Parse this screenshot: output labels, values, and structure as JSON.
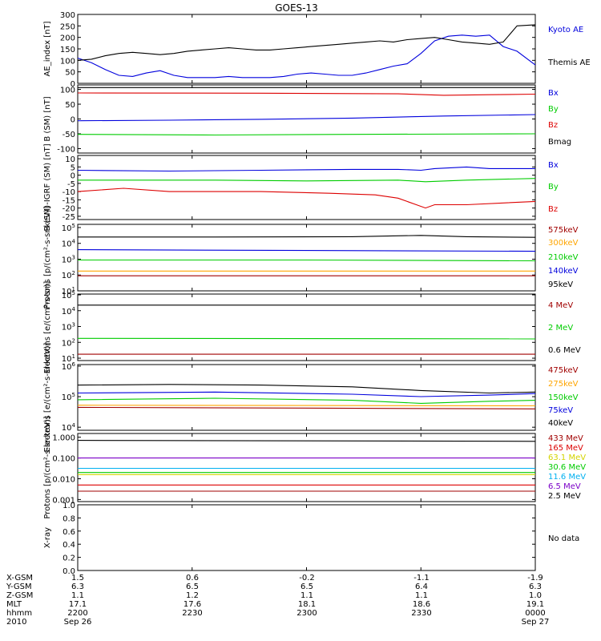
{
  "title": "GOES-13",
  "colors": {
    "black": "#000000",
    "blue": "#0000dd",
    "green": "#00cc00",
    "red": "#dd0000",
    "orange": "#ffa500",
    "darkred": "#a00000",
    "cyan": "#00b0f0",
    "purple": "#7b00c8",
    "yellow": "#d4d400"
  },
  "chart_data": [
    {
      "type": "line",
      "panel_id": "ae",
      "ylabel": "AE_index [nT]",
      "yticks": [
        "300",
        "250",
        "200",
        "150",
        "100",
        "50",
        "0"
      ],
      "ylim": [
        0,
        300
      ],
      "scale": "linear",
      "series": [
        {
          "name": "Kyoto AE",
          "color": "blue",
          "values": [
            [
              0,
              110
            ],
            [
              3,
              90
            ],
            [
              6,
              60
            ],
            [
              9,
              35
            ],
            [
              12,
              30
            ],
            [
              15,
              45
            ],
            [
              18,
              55
            ],
            [
              21,
              35
            ],
            [
              24,
              25
            ],
            [
              27,
              25
            ],
            [
              30,
              25
            ],
            [
              33,
              30
            ],
            [
              36,
              25
            ],
            [
              39,
              25
            ],
            [
              42,
              25
            ],
            [
              45,
              30
            ],
            [
              48,
              40
            ],
            [
              51,
              45
            ],
            [
              54,
              40
            ],
            [
              57,
              35
            ],
            [
              60,
              35
            ],
            [
              63,
              45
            ],
            [
              66,
              60
            ],
            [
              69,
              75
            ],
            [
              72,
              85
            ],
            [
              75,
              130
            ],
            [
              78,
              185
            ],
            [
              81,
              205
            ],
            [
              84,
              210
            ],
            [
              87,
              205
            ],
            [
              90,
              210
            ],
            [
              93,
              160
            ],
            [
              96,
              140
            ],
            [
              100,
              80
            ]
          ]
        },
        {
          "name": "Themis AE",
          "color": "black",
          "values": [
            [
              0,
              100
            ],
            [
              3,
              105
            ],
            [
              6,
              120
            ],
            [
              9,
              130
            ],
            [
              12,
              135
            ],
            [
              15,
              130
            ],
            [
              18,
              125
            ],
            [
              21,
              130
            ],
            [
              24,
              140
            ],
            [
              27,
              145
            ],
            [
              30,
              150
            ],
            [
              33,
              155
            ],
            [
              36,
              150
            ],
            [
              39,
              145
            ],
            [
              42,
              145
            ],
            [
              45,
              150
            ],
            [
              48,
              155
            ],
            [
              51,
              160
            ],
            [
              54,
              165
            ],
            [
              57,
              170
            ],
            [
              60,
              175
            ],
            [
              63,
              180
            ],
            [
              66,
              185
            ],
            [
              69,
              180
            ],
            [
              72,
              190
            ],
            [
              75,
              195
            ],
            [
              78,
              200
            ],
            [
              81,
              190
            ],
            [
              84,
              180
            ],
            [
              87,
              175
            ],
            [
              90,
              170
            ],
            [
              93,
              180
            ],
            [
              96,
              250
            ],
            [
              100,
              255
            ]
          ]
        }
      ]
    },
    {
      "type": "line",
      "panel_id": "bsm",
      "ylabel": "B (SM) [nT]",
      "yticks": [
        "100",
        "50",
        "0",
        "-50",
        "-100"
      ],
      "ylim": [
        -115,
        115
      ],
      "scale": "linear",
      "series": [
        {
          "name": "Bx",
          "color": "blue",
          "values": [
            [
              0,
              -6
            ],
            [
              20,
              -4
            ],
            [
              40,
              -1
            ],
            [
              60,
              3
            ],
            [
              80,
              10
            ],
            [
              100,
              15
            ]
          ]
        },
        {
          "name": "By",
          "color": "green",
          "values": [
            [
              0,
              -52
            ],
            [
              30,
              -54
            ],
            [
              60,
              -52
            ],
            [
              100,
              -50
            ]
          ]
        },
        {
          "name": "Bz",
          "color": "red",
          "values": [
            [
              0,
              88
            ],
            [
              40,
              87
            ],
            [
              70,
              85
            ],
            [
              80,
              80
            ],
            [
              90,
              82
            ],
            [
              100,
              84
            ]
          ]
        },
        {
          "name": "Bmag",
          "color": "black",
          "values": [
            [
              0,
              106
            ],
            [
              50,
              106
            ],
            [
              100,
              106
            ]
          ]
        }
      ]
    },
    {
      "type": "line",
      "panel_id": "digrf",
      "ylabel": "B (SM)-IGRF (SM) [nT]",
      "yticks": [
        "10",
        "5",
        "0",
        "-5",
        "-10",
        "-15",
        "-20",
        "-25"
      ],
      "ylim": [
        -27,
        12
      ],
      "scale": "linear",
      "series": [
        {
          "name": "Bx",
          "color": "blue",
          "values": [
            [
              0,
              3
            ],
            [
              20,
              2.5
            ],
            [
              40,
              3
            ],
            [
              60,
              3.5
            ],
            [
              70,
              3.5
            ],
            [
              75,
              3
            ],
            [
              78,
              4
            ],
            [
              85,
              5
            ],
            [
              90,
              4
            ],
            [
              100,
              4
            ]
          ]
        },
        {
          "name": "By",
          "color": "green",
          "values": [
            [
              0,
              -3
            ],
            [
              30,
              -3
            ],
            [
              50,
              -3.5
            ],
            [
              70,
              -3
            ],
            [
              76,
              -4
            ],
            [
              85,
              -3
            ],
            [
              100,
              -2
            ]
          ]
        },
        {
          "name": "Bz",
          "color": "red",
          "values": [
            [
              0,
              -10
            ],
            [
              10,
              -8
            ],
            [
              20,
              -10
            ],
            [
              40,
              -10
            ],
            [
              55,
              -11
            ],
            [
              65,
              -12
            ],
            [
              70,
              -14
            ],
            [
              74,
              -18
            ],
            [
              76,
              -20
            ],
            [
              78,
              -18
            ],
            [
              85,
              -18
            ],
            [
              100,
              -16
            ]
          ]
        }
      ]
    },
    {
      "type": "line",
      "panel_id": "protons",
      "ylabel": "Protons [p/(cm²-s-sr-keV)]",
      "yticks": [
        "10^5",
        "10^4",
        "10^3",
        "10^2",
        "10^1"
      ],
      "ylim": [
        1,
        5.2
      ],
      "scale": "log10",
      "series": [
        {
          "name": "575keV",
          "color": "black",
          "values": [
            [
              0,
              4.4
            ],
            [
              30,
              4.4
            ],
            [
              60,
              4.42
            ],
            [
              75,
              4.5
            ],
            [
              85,
              4.42
            ],
            [
              100,
              4.38
            ]
          ]
        },
        {
          "name": "300keV",
          "color": "orange",
          "values": [
            [
              0,
              2.25
            ],
            [
              100,
              2.25
            ]
          ]
        },
        {
          "name": "210keV",
          "color": "green",
          "values": [
            [
              0,
              2.95
            ],
            [
              50,
              2.95
            ],
            [
              100,
              2.9
            ]
          ]
        },
        {
          "name": "140keV",
          "color": "blue",
          "values": [
            [
              0,
              3.6
            ],
            [
              50,
              3.55
            ],
            [
              100,
              3.5
            ]
          ]
        },
        {
          "name": "95keV",
          "color": "darkred",
          "values": [
            [
              0,
              1.95
            ],
            [
              50,
              1.95
            ],
            [
              100,
              1.95
            ]
          ]
        }
      ]
    },
    {
      "type": "line",
      "panel_id": "electrons1",
      "ylabel": "Electrons [e/(cm²-s-sr)]",
      "yticks": [
        "10^5",
        "10^4",
        "10^3",
        "10^2",
        "10^1"
      ],
      "ylim": [
        0.85,
        5.05
      ],
      "scale": "log10",
      "series": [
        {
          "name": "4 MeV",
          "color": "darkred",
          "values": [
            [
              0,
              1.25
            ],
            [
              100,
              1.25
            ]
          ]
        },
        {
          "name": "2 MeV",
          "color": "green",
          "values": [
            [
              0,
              2.25
            ],
            [
              100,
              2.22
            ]
          ]
        },
        {
          "name": "0.6 MeV",
          "color": "black",
          "values": [
            [
              0,
              4.35
            ],
            [
              100,
              4.35
            ]
          ]
        }
      ]
    },
    {
      "type": "line",
      "panel_id": "electrons2",
      "ylabel": "Electrons [e/(cm²-s-sr-keV)]",
      "yticks": [
        "10^6",
        "10^5",
        "10^4"
      ],
      "ylim": [
        3.9,
        6.05
      ],
      "scale": "log10",
      "series": [
        {
          "name": "475keV",
          "color": "black",
          "values": [
            [
              0,
              5.38
            ],
            [
              20,
              5.4
            ],
            [
              40,
              5.38
            ],
            [
              60,
              5.32
            ],
            [
              75,
              5.2
            ],
            [
              90,
              5.12
            ],
            [
              100,
              5.15
            ]
          ]
        },
        {
          "name": "275keV",
          "color": "darkred",
          "values": [
            [
              0,
              4.65
            ],
            [
              100,
              4.6
            ]
          ]
        },
        {
          "name": "150keV",
          "color": "green",
          "values": [
            [
              0,
              4.9
            ],
            [
              30,
              4.95
            ],
            [
              60,
              4.88
            ],
            [
              75,
              4.78
            ],
            [
              90,
              4.85
            ],
            [
              100,
              4.88
            ]
          ]
        },
        {
          "name": "75keV",
          "color": "blue",
          "values": [
            [
              0,
              5.12
            ],
            [
              30,
              5.15
            ],
            [
              60,
              5.08
            ],
            [
              75,
              5.0
            ],
            [
              90,
              5.05
            ],
            [
              100,
              5.1
            ]
          ]
        },
        {
          "name": "40keV",
          "color": "orange",
          "values": [
            [
              0,
              4.72
            ],
            [
              100,
              4.7
            ]
          ]
        }
      ]
    },
    {
      "type": "line",
      "panel_id": "protons2",
      "ylabel": "Protons [p/(cm²-s-sr-keV)]",
      "yticks": [
        "1.000",
        "0.100",
        "0.010",
        "0.001"
      ],
      "ylim": [
        -3.1,
        0.18
      ],
      "scale": "log10",
      "series": [
        {
          "name": "433 MeV",
          "color": "darkred",
          "values": [
            [
              0,
              -2.6
            ],
            [
              100,
              -2.6
            ]
          ]
        },
        {
          "name": "165 MeV",
          "color": "red",
          "values": [
            [
              0,
              -2.3
            ],
            [
              100,
              -2.3
            ]
          ]
        },
        {
          "name": "63.1 MeV",
          "color": "yellow",
          "values": [
            [
              0,
              -1.8
            ],
            [
              100,
              -1.8
            ]
          ]
        },
        {
          "name": "30.6 MeV",
          "color": "green",
          "values": [
            [
              0,
              -1.7
            ],
            [
              100,
              -1.7
            ]
          ]
        },
        {
          "name": "11.6 MeV",
          "color": "cyan",
          "values": [
            [
              0,
              -1.5
            ],
            [
              100,
              -1.5
            ]
          ]
        },
        {
          "name": "6.5 MeV",
          "color": "purple",
          "values": [
            [
              0,
              -1.0
            ],
            [
              100,
              -1.0
            ]
          ]
        },
        {
          "name": "2.5 MeV",
          "color": "black",
          "values": [
            [
              0,
              -0.15
            ],
            [
              100,
              -0.2
            ]
          ]
        }
      ]
    },
    {
      "type": "line",
      "panel_id": "xray",
      "ylabel": "X-ray",
      "yticks": [
        "1.0",
        "0.8",
        "0.6",
        "0.4",
        "0.2",
        "0.0"
      ],
      "ylim": [
        0,
        1
      ],
      "scale": "linear",
      "series": [],
      "message": "No data"
    }
  ],
  "orbit": {
    "labels": [
      "X-GSM",
      "Y-GSM",
      "Z-GSM",
      "MLT",
      "hhmm",
      "2010"
    ],
    "columns": [
      [
        "1.5",
        "6.3",
        "1.1",
        "17.1",
        "2200",
        "Sep 26"
      ],
      [
        "0.6",
        "6.5",
        "1.2",
        "17.6",
        "2230",
        ""
      ],
      [
        "-0.2",
        "6.5",
        "1.1",
        "18.1",
        "2300",
        ""
      ],
      [
        "-1.1",
        "6.4",
        "1.1",
        "18.6",
        "2330",
        ""
      ],
      [
        "-1.9",
        "6.3",
        "1.0",
        "19.1",
        "0000",
        "Sep 27"
      ]
    ]
  }
}
